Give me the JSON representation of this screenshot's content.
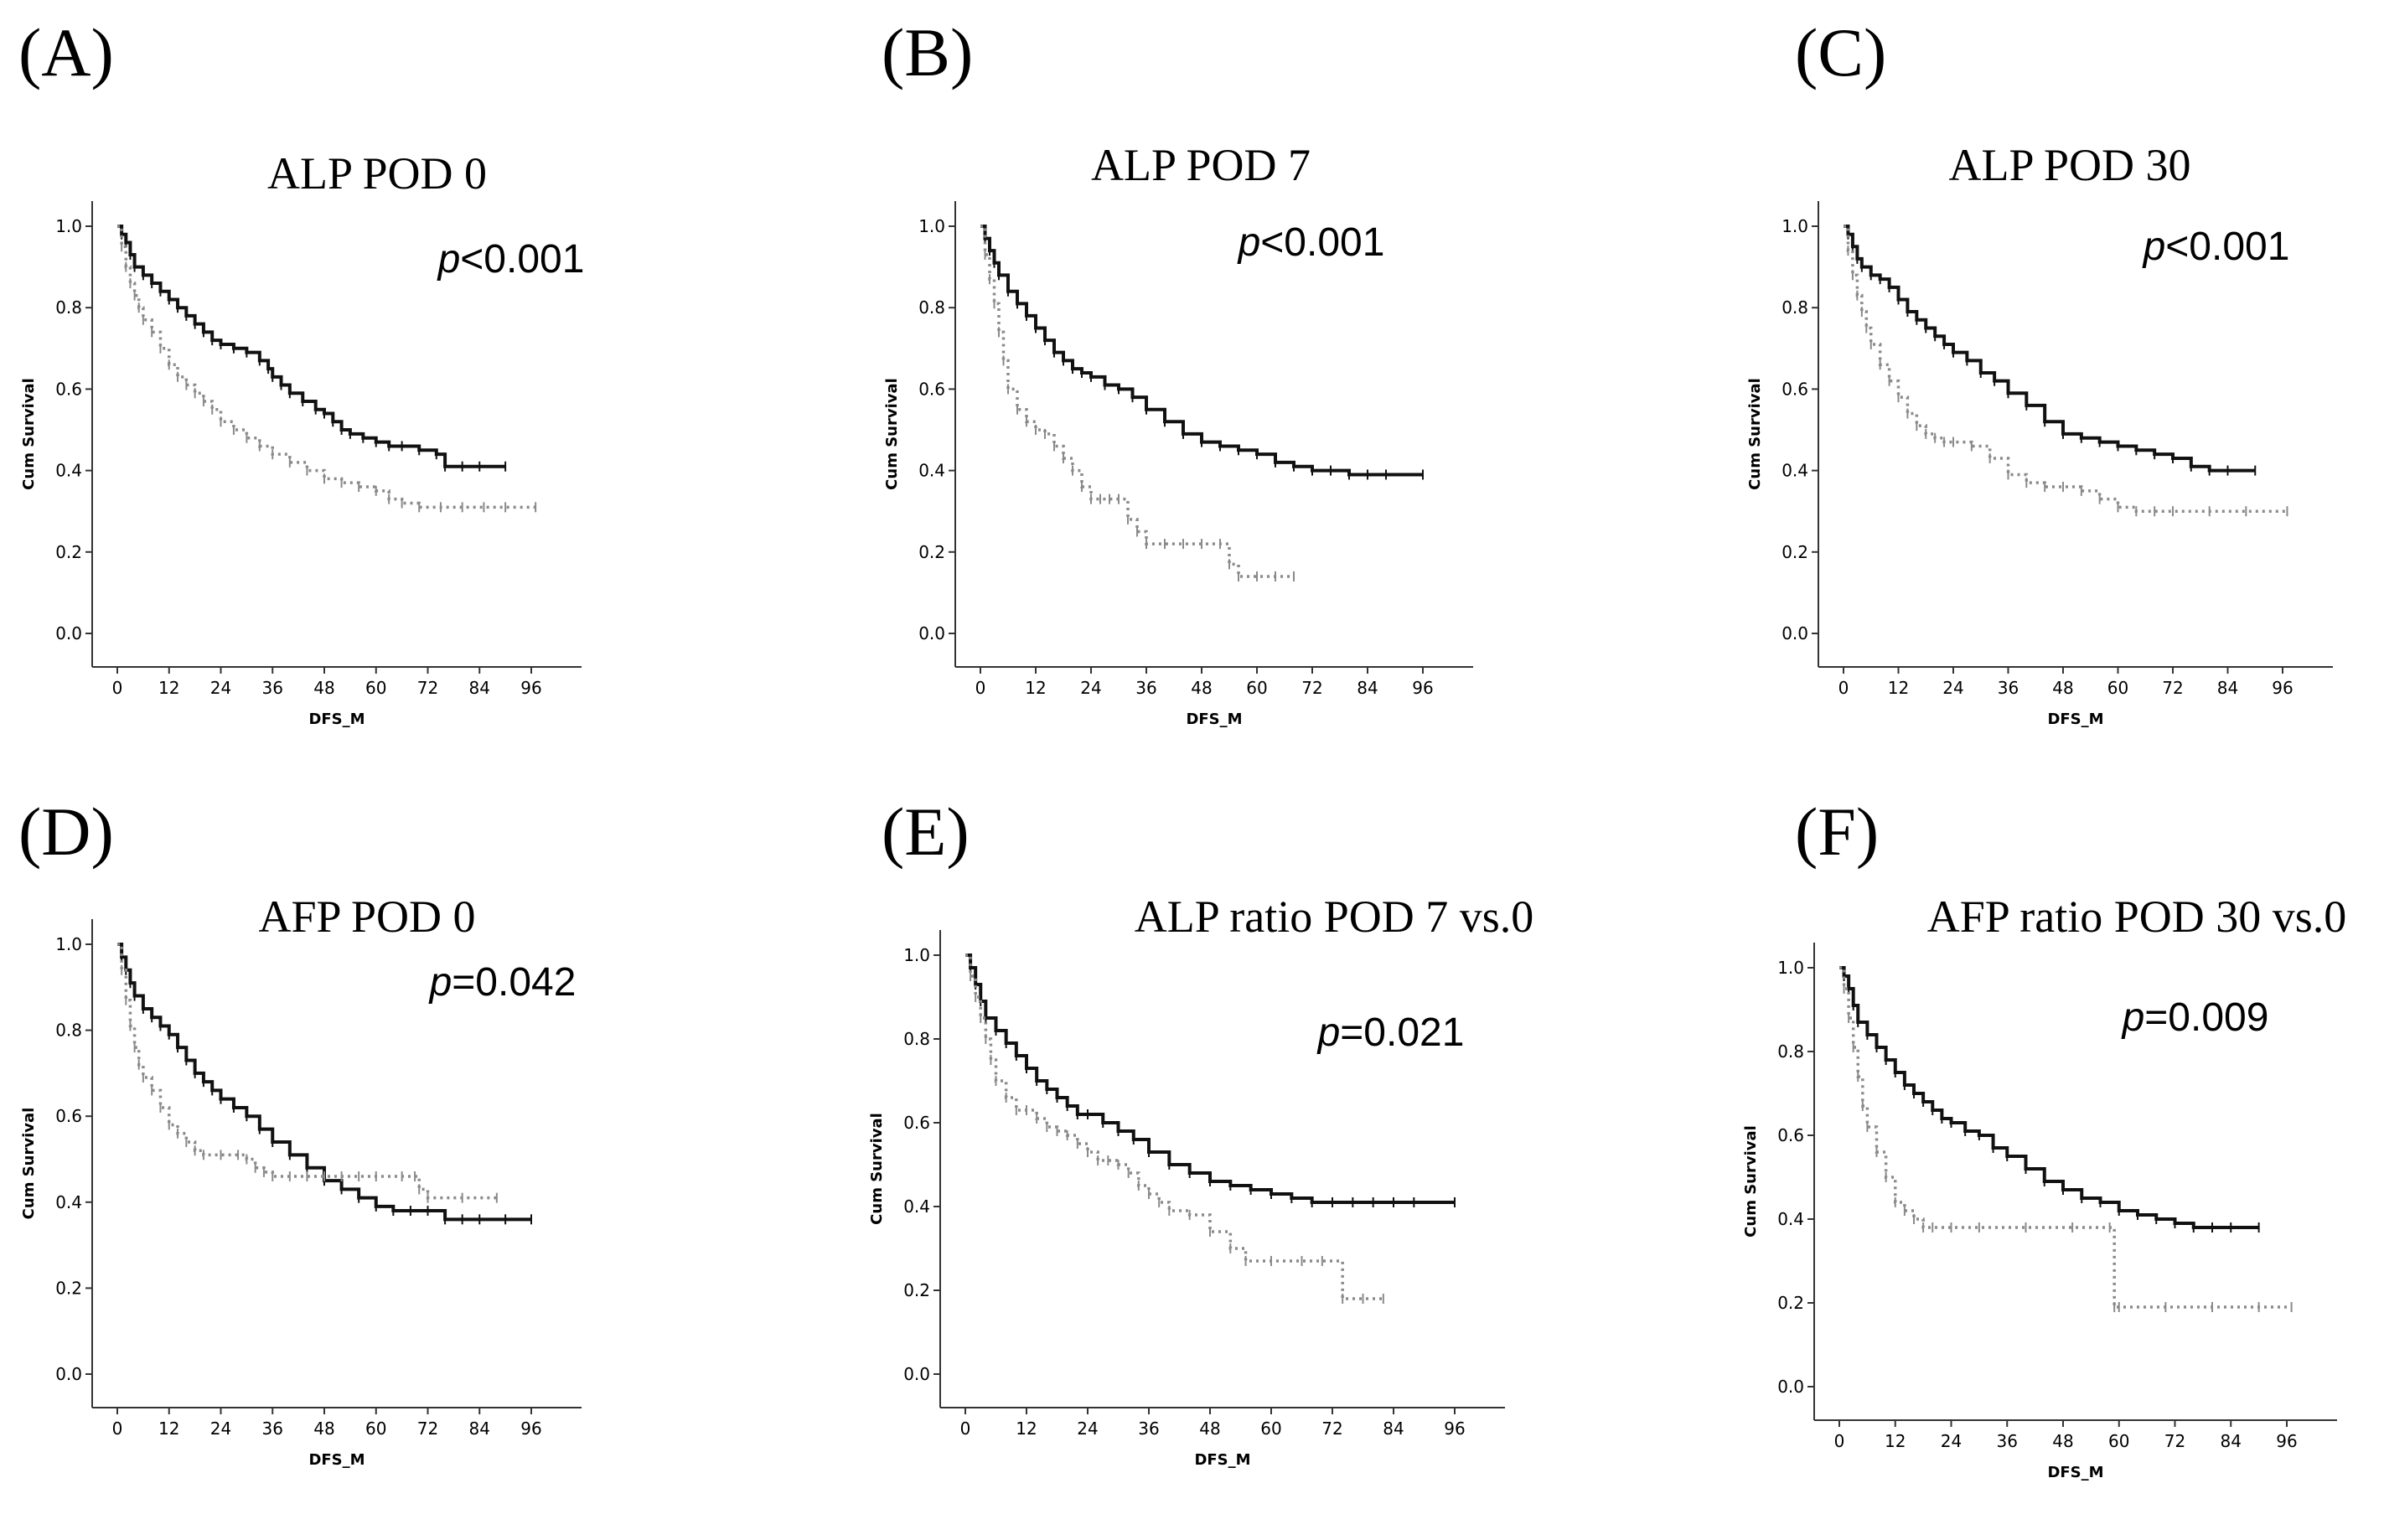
{
  "figure": {
    "background": "#ffffff",
    "series_colors": {
      "solid": "#111111",
      "dotted": "#8a8a8a"
    }
  },
  "chart_data": [
    {
      "type": "line",
      "panel": "(A)",
      "title": "ALP POD 0",
      "p_prefix": "p",
      "p_rest": "<0.001",
      "xlabel": "DFS_M",
      "ylabel": "Cum Survival",
      "xlim": [
        0,
        96
      ],
      "ylim": [
        0,
        1
      ],
      "xticks": [
        "0",
        "12",
        "24",
        "36",
        "48",
        "60",
        "72",
        "84",
        "96"
      ],
      "yticks": [
        "0.0",
        "0.2",
        "0.4",
        "0.6",
        "0.8",
        "1.0"
      ],
      "series": [
        {
          "style": "solid",
          "x": [
            0,
            1,
            2,
            3,
            4,
            6,
            8,
            10,
            12,
            14,
            16,
            18,
            20,
            22,
            24,
            27,
            30,
            33,
            35,
            36,
            38,
            40,
            43,
            46,
            48,
            50,
            52,
            54,
            57,
            60,
            63,
            66,
            70,
            74,
            76,
            80,
            84,
            90
          ],
          "y": [
            1.0,
            0.98,
            0.96,
            0.93,
            0.9,
            0.88,
            0.86,
            0.84,
            0.82,
            0.8,
            0.78,
            0.76,
            0.74,
            0.72,
            0.71,
            0.7,
            0.69,
            0.67,
            0.65,
            0.63,
            0.61,
            0.59,
            0.57,
            0.55,
            0.54,
            0.52,
            0.5,
            0.49,
            0.48,
            0.47,
            0.46,
            0.46,
            0.45,
            0.44,
            0.41,
            0.41,
            0.41,
            0.41
          ]
        },
        {
          "style": "dotted",
          "x": [
            0,
            1,
            2,
            3,
            4,
            5,
            6,
            8,
            10,
            12,
            14,
            16,
            18,
            20,
            22,
            24,
            27,
            30,
            33,
            36,
            40,
            44,
            48,
            52,
            56,
            60,
            63,
            66,
            70,
            75,
            80,
            85,
            90,
            97
          ],
          "y": [
            1.0,
            0.95,
            0.9,
            0.86,
            0.83,
            0.8,
            0.77,
            0.74,
            0.7,
            0.66,
            0.63,
            0.61,
            0.59,
            0.57,
            0.55,
            0.52,
            0.5,
            0.48,
            0.46,
            0.44,
            0.42,
            0.4,
            0.38,
            0.37,
            0.36,
            0.35,
            0.33,
            0.32,
            0.31,
            0.31,
            0.31,
            0.31,
            0.31,
            0.31
          ]
        }
      ]
    },
    {
      "type": "line",
      "panel": "(B)",
      "title": "ALP POD 7",
      "p_prefix": "p",
      "p_rest": "<0.001",
      "xlabel": "DFS_M",
      "ylabel": "Cum Survival",
      "xlim": [
        0,
        96
      ],
      "ylim": [
        0,
        1
      ],
      "xticks": [
        "0",
        "12",
        "24",
        "36",
        "48",
        "60",
        "72",
        "84",
        "96"
      ],
      "yticks": [
        "0.0",
        "0.2",
        "0.4",
        "0.6",
        "0.8",
        "1.0"
      ],
      "series": [
        {
          "style": "solid",
          "x": [
            0,
            1,
            2,
            3,
            4,
            6,
            8,
            10,
            12,
            14,
            16,
            18,
            20,
            22,
            24,
            27,
            30,
            33,
            36,
            40,
            44,
            48,
            52,
            56,
            60,
            64,
            68,
            72,
            76,
            80,
            84,
            88,
            96
          ],
          "y": [
            1.0,
            0.97,
            0.94,
            0.91,
            0.88,
            0.84,
            0.81,
            0.78,
            0.75,
            0.72,
            0.69,
            0.67,
            0.65,
            0.64,
            0.63,
            0.61,
            0.6,
            0.58,
            0.55,
            0.52,
            0.49,
            0.47,
            0.46,
            0.45,
            0.44,
            0.42,
            0.41,
            0.4,
            0.4,
            0.39,
            0.39,
            0.39,
            0.39
          ]
        },
        {
          "style": "dotted",
          "x": [
            0,
            1,
            2,
            3,
            4,
            5,
            6,
            8,
            10,
            12,
            14,
            16,
            18,
            20,
            22,
            24,
            26,
            28,
            30,
            32,
            34,
            36,
            40,
            44,
            48,
            52,
            54,
            56,
            60,
            64,
            68
          ],
          "y": [
            1.0,
            0.93,
            0.87,
            0.81,
            0.74,
            0.67,
            0.6,
            0.55,
            0.52,
            0.5,
            0.49,
            0.46,
            0.43,
            0.4,
            0.36,
            0.33,
            0.33,
            0.33,
            0.33,
            0.28,
            0.25,
            0.22,
            0.22,
            0.22,
            0.22,
            0.22,
            0.17,
            0.14,
            0.14,
            0.14,
            0.14
          ]
        }
      ]
    },
    {
      "type": "line",
      "panel": "(C)",
      "title": "ALP POD 30",
      "p_prefix": "p",
      "p_rest": "<0.001",
      "xlabel": "DFS_M",
      "ylabel": "Cum Survival",
      "xlim": [
        0,
        96
      ],
      "ylim": [
        0,
        1
      ],
      "xticks": [
        "0",
        "12",
        "24",
        "36",
        "48",
        "60",
        "72",
        "84",
        "96"
      ],
      "yticks": [
        "0.0",
        "0.2",
        "0.4",
        "0.6",
        "0.8",
        "1.0"
      ],
      "series": [
        {
          "style": "solid",
          "x": [
            0,
            1,
            2,
            3,
            4,
            6,
            8,
            10,
            12,
            14,
            16,
            18,
            20,
            22,
            24,
            27,
            30,
            33,
            36,
            40,
            44,
            48,
            52,
            56,
            60,
            64,
            68,
            72,
            76,
            80,
            84,
            90
          ],
          "y": [
            1.0,
            0.98,
            0.95,
            0.92,
            0.9,
            0.88,
            0.87,
            0.85,
            0.82,
            0.79,
            0.77,
            0.75,
            0.73,
            0.71,
            0.69,
            0.67,
            0.64,
            0.62,
            0.59,
            0.56,
            0.52,
            0.49,
            0.48,
            0.47,
            0.46,
            0.45,
            0.44,
            0.43,
            0.41,
            0.4,
            0.4,
            0.4
          ]
        },
        {
          "style": "dotted",
          "x": [
            0,
            1,
            2,
            3,
            4,
            5,
            6,
            8,
            10,
            12,
            14,
            16,
            18,
            20,
            22,
            24,
            28,
            32,
            36,
            40,
            44,
            48,
            52,
            56,
            60,
            64,
            68,
            72,
            80,
            88,
            97
          ],
          "y": [
            1.0,
            0.94,
            0.88,
            0.83,
            0.79,
            0.75,
            0.71,
            0.66,
            0.62,
            0.58,
            0.54,
            0.51,
            0.49,
            0.48,
            0.47,
            0.47,
            0.46,
            0.43,
            0.39,
            0.37,
            0.36,
            0.36,
            0.35,
            0.33,
            0.31,
            0.3,
            0.3,
            0.3,
            0.3,
            0.3,
            0.3
          ]
        }
      ]
    },
    {
      "type": "line",
      "panel": "(D)",
      "title": "AFP POD 0",
      "p_prefix": "p",
      "p_rest": "=0.042",
      "xlabel": "DFS_M",
      "ylabel": "Cum Survival",
      "xlim": [
        0,
        96
      ],
      "ylim": [
        0,
        1
      ],
      "xticks": [
        "0",
        "12",
        "24",
        "36",
        "48",
        "60",
        "72",
        "84",
        "96"
      ],
      "yticks": [
        "0.0",
        "0.2",
        "0.4",
        "0.6",
        "0.8",
        "1.0"
      ],
      "series": [
        {
          "style": "solid",
          "x": [
            0,
            1,
            2,
            3,
            4,
            6,
            8,
            10,
            12,
            14,
            16,
            18,
            20,
            22,
            24,
            27,
            30,
            33,
            36,
            40,
            44,
            48,
            52,
            56,
            60,
            64,
            68,
            72,
            76,
            80,
            84,
            90,
            96
          ],
          "y": [
            1.0,
            0.97,
            0.94,
            0.91,
            0.88,
            0.85,
            0.83,
            0.81,
            0.79,
            0.76,
            0.73,
            0.7,
            0.68,
            0.66,
            0.64,
            0.62,
            0.6,
            0.57,
            0.54,
            0.51,
            0.48,
            0.45,
            0.43,
            0.41,
            0.39,
            0.38,
            0.38,
            0.38,
            0.36,
            0.36,
            0.36,
            0.36,
            0.36
          ]
        },
        {
          "style": "dotted",
          "x": [
            0,
            1,
            2,
            3,
            4,
            5,
            6,
            8,
            10,
            12,
            14,
            16,
            18,
            20,
            24,
            28,
            30,
            32,
            34,
            36,
            40,
            44,
            48,
            52,
            56,
            60,
            66,
            69,
            70,
            72,
            80,
            88
          ],
          "y": [
            1.0,
            0.94,
            0.87,
            0.81,
            0.76,
            0.72,
            0.69,
            0.66,
            0.62,
            0.58,
            0.56,
            0.54,
            0.52,
            0.51,
            0.51,
            0.51,
            0.5,
            0.48,
            0.47,
            0.46,
            0.46,
            0.46,
            0.46,
            0.46,
            0.46,
            0.46,
            0.46,
            0.46,
            0.43,
            0.41,
            0.41,
            0.41
          ]
        }
      ]
    },
    {
      "type": "line",
      "panel": "(E)",
      "title": "ALP ratio POD 7 vs.0",
      "p_prefix": "p",
      "p_rest": "=0.021",
      "xlabel": "DFS_M",
      "ylabel": "Cum Survival",
      "xlim": [
        0,
        96
      ],
      "ylim": [
        0,
        1
      ],
      "xticks": [
        "0",
        "12",
        "24",
        "36",
        "48",
        "60",
        "72",
        "84",
        "96"
      ],
      "yticks": [
        "0.0",
        "0.2",
        "0.4",
        "0.6",
        "0.8",
        "1.0"
      ],
      "series": [
        {
          "style": "solid",
          "x": [
            0,
            1,
            2,
            3,
            4,
            6,
            8,
            10,
            12,
            14,
            16,
            18,
            20,
            22,
            24,
            27,
            30,
            33,
            36,
            40,
            44,
            48,
            52,
            56,
            60,
            64,
            68,
            72,
            76,
            80,
            84,
            88,
            96
          ],
          "y": [
            1.0,
            0.97,
            0.93,
            0.89,
            0.85,
            0.82,
            0.79,
            0.76,
            0.73,
            0.7,
            0.68,
            0.66,
            0.64,
            0.62,
            0.62,
            0.6,
            0.58,
            0.56,
            0.53,
            0.5,
            0.48,
            0.46,
            0.45,
            0.44,
            0.43,
            0.42,
            0.41,
            0.41,
            0.41,
            0.41,
            0.41,
            0.41,
            0.41
          ]
        },
        {
          "style": "dotted",
          "x": [
            0,
            1,
            2,
            3,
            4,
            5,
            6,
            8,
            10,
            12,
            14,
            16,
            18,
            20,
            22,
            24,
            26,
            28,
            30,
            32,
            34,
            36,
            38,
            40,
            44,
            48,
            52,
            55,
            60,
            66,
            70,
            74,
            78,
            82
          ],
          "y": [
            1.0,
            0.95,
            0.9,
            0.85,
            0.8,
            0.75,
            0.7,
            0.66,
            0.63,
            0.63,
            0.61,
            0.59,
            0.58,
            0.57,
            0.55,
            0.53,
            0.51,
            0.51,
            0.5,
            0.48,
            0.45,
            0.43,
            0.41,
            0.39,
            0.38,
            0.34,
            0.3,
            0.27,
            0.27,
            0.27,
            0.27,
            0.18,
            0.18,
            0.18
          ]
        }
      ]
    },
    {
      "type": "line",
      "panel": "(F)",
      "title": "AFP ratio POD 30 vs.0",
      "p_prefix": "p",
      "p_rest": "=0.009",
      "xlabel": "DFS_M",
      "ylabel": "Cum Survival",
      "xlim": [
        0,
        96
      ],
      "ylim": [
        0,
        1
      ],
      "xticks": [
        "0",
        "12",
        "24",
        "36",
        "48",
        "60",
        "72",
        "84",
        "96"
      ],
      "yticks": [
        "0.0",
        "0.2",
        "0.4",
        "0.6",
        "0.8",
        "1.0"
      ],
      "series": [
        {
          "style": "solid",
          "x": [
            0,
            1,
            2,
            3,
            4,
            6,
            8,
            10,
            12,
            14,
            16,
            18,
            20,
            22,
            24,
            27,
            30,
            33,
            36,
            40,
            44,
            48,
            52,
            56,
            60,
            64,
            68,
            72,
            76,
            80,
            84,
            90
          ],
          "y": [
            1.0,
            0.98,
            0.95,
            0.91,
            0.87,
            0.84,
            0.81,
            0.78,
            0.75,
            0.72,
            0.7,
            0.68,
            0.66,
            0.64,
            0.63,
            0.61,
            0.6,
            0.57,
            0.55,
            0.52,
            0.49,
            0.47,
            0.45,
            0.44,
            0.42,
            0.41,
            0.4,
            0.39,
            0.38,
            0.38,
            0.38,
            0.38
          ]
        },
        {
          "style": "dotted",
          "x": [
            0,
            1,
            2,
            3,
            4,
            5,
            6,
            8,
            10,
            12,
            14,
            16,
            18,
            20,
            24,
            30,
            40,
            50,
            58,
            59,
            60,
            70,
            80,
            90,
            97
          ],
          "y": [
            1.0,
            0.95,
            0.88,
            0.81,
            0.74,
            0.67,
            0.62,
            0.56,
            0.5,
            0.44,
            0.42,
            0.4,
            0.38,
            0.38,
            0.38,
            0.38,
            0.38,
            0.38,
            0.38,
            0.19,
            0.19,
            0.19,
            0.19,
            0.19,
            0.19
          ]
        }
      ]
    }
  ]
}
